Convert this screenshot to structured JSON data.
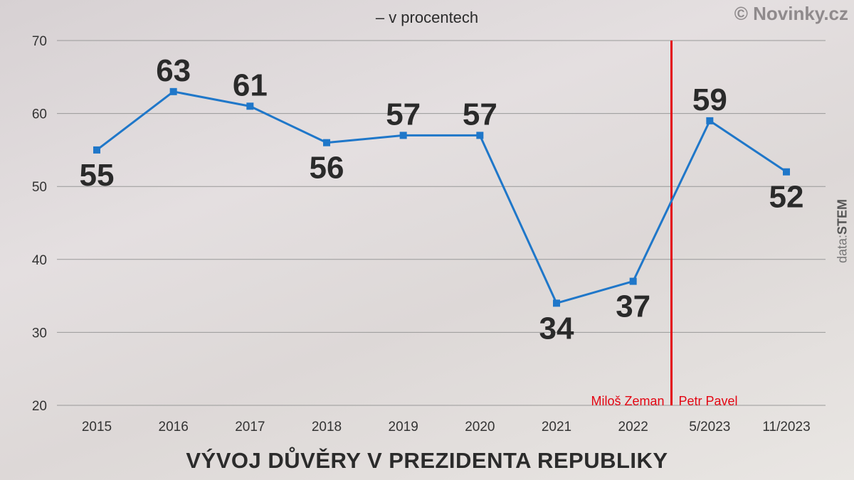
{
  "brand": "© Novinky.cz",
  "subtitle": "– v procentech",
  "title": "VÝVOJ DŮVĚRY V PREZIDENTA REPUBLIKY",
  "source": {
    "prefix": "data:",
    "name": "STEM"
  },
  "colors": {
    "line": "#1f77c9",
    "divider": "#e30613",
    "grid": "#999999",
    "text": "#2b2b2b"
  },
  "chart_data": {
    "type": "line",
    "title": "VÝVOJ DŮVĚRY V PREZIDENTA REPUBLIKY",
    "subtitle": "– v procentech",
    "xlabel": "",
    "ylabel": "",
    "categories": [
      "2015",
      "2016",
      "2017",
      "2018",
      "2019",
      "2020",
      "2021",
      "2022",
      "5/2023",
      "11/2023"
    ],
    "series": [
      {
        "values": [
          55,
          63,
          61,
          56,
          57,
          57,
          34,
          37,
          59,
          52
        ]
      }
    ],
    "data_labels": [
      "55",
      "63",
      "61",
      "56",
      "57",
      "57",
      "34",
      "37",
      "59",
      "52"
    ],
    "ylim": [
      20,
      70
    ],
    "yticks": [
      20,
      30,
      40,
      50,
      60,
      70
    ],
    "grid": true,
    "annotations": [
      {
        "type": "divider",
        "between": [
          "2022",
          "5/2023"
        ],
        "left_label": "Miloš Zeman",
        "right_label": "Petr Pavel"
      }
    ]
  }
}
